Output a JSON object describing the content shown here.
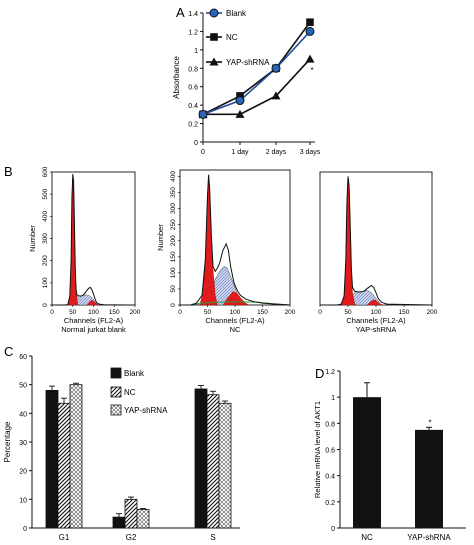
{
  "panels": {
    "a": "A",
    "b": "B",
    "c": "C",
    "d": "D"
  },
  "colors": {
    "blank_line": "#1f4e9a",
    "black": "#111111",
    "peak_red": "#e11b1b",
    "s_phase_fill": "#a9b8dd",
    "hist_line": "#111111",
    "fit_green": "#2e9a3a"
  },
  "chart_data": [
    {
      "id": "panel-a",
      "type": "line",
      "ylabel": "Absorbance",
      "ylim": [
        0,
        1.4
      ],
      "yticks": [
        "0",
        "0.2",
        "0.4",
        "0.6",
        "0.8",
        "1",
        "1.2",
        "1.4"
      ],
      "categories": [
        "0",
        "1 day",
        "2 days",
        "3 days"
      ],
      "series": [
        {
          "name": "Blank",
          "marker": "circle",
          "values": [
            0.3,
            0.45,
            0.8,
            1.2
          ]
        },
        {
          "name": "NC",
          "marker": "square",
          "values": [
            0.3,
            0.5,
            0.8,
            1.3
          ]
        },
        {
          "name": "YAP-shRNA",
          "marker": "triangle",
          "values": [
            0.3,
            0.3,
            0.5,
            0.9
          ]
        }
      ],
      "annotation": "*",
      "legend": "top-left"
    },
    {
      "id": "panel-b1",
      "type": "histogram",
      "xlabel": "Channels (FL2-A)",
      "ylabel": "Number",
      "caption": "Normal jurkat blank",
      "ylim": [
        0,
        600
      ],
      "yticks": [
        "0",
        "100",
        "200",
        "300",
        "400",
        "500",
        "600"
      ],
      "xticks": [
        "0",
        "50",
        "100",
        "150",
        "200"
      ],
      "xlim": [
        0,
        200
      ],
      "curve": [
        [
          0,
          0
        ],
        [
          30,
          0
        ],
        [
          38,
          2
        ],
        [
          43,
          40
        ],
        [
          46,
          200
        ],
        [
          48,
          480
        ],
        [
          50,
          590
        ],
        [
          52,
          560
        ],
        [
          54,
          380
        ],
        [
          56,
          170
        ],
        [
          58,
          70
        ],
        [
          60,
          45
        ],
        [
          64,
          42
        ],
        [
          70,
          40
        ],
        [
          76,
          46
        ],
        [
          82,
          60
        ],
        [
          88,
          75
        ],
        [
          92,
          80
        ],
        [
          96,
          70
        ],
        [
          100,
          50
        ],
        [
          104,
          25
        ],
        [
          108,
          10
        ],
        [
          114,
          4
        ],
        [
          125,
          1
        ],
        [
          200,
          0
        ]
      ],
      "g1": [
        [
          38,
          0
        ],
        [
          43,
          40
        ],
        [
          46,
          200
        ],
        [
          48,
          480
        ],
        [
          50,
          590
        ],
        [
          52,
          560
        ],
        [
          54,
          380
        ],
        [
          56,
          170
        ],
        [
          58,
          60
        ],
        [
          62,
          5
        ],
        [
          64,
          0
        ]
      ],
      "g2": [
        [
          84,
          0
        ],
        [
          90,
          12
        ],
        [
          96,
          22
        ],
        [
          100,
          18
        ],
        [
          106,
          6
        ],
        [
          112,
          0
        ]
      ],
      "s": [
        [
          52,
          0
        ],
        [
          56,
          30
        ],
        [
          62,
          40
        ],
        [
          72,
          42
        ],
        [
          82,
          46
        ],
        [
          92,
          40
        ],
        [
          102,
          20
        ],
        [
          110,
          0
        ]
      ]
    },
    {
      "id": "panel-b2",
      "type": "histogram",
      "xlabel": "Channels (FL2-A)",
      "ylabel": "Number",
      "caption": "NC",
      "ylim": [
        0,
        420
      ],
      "yticks": [
        "0",
        "50",
        "100",
        "150",
        "200",
        "250",
        "300",
        "350",
        "400"
      ],
      "xticks": [
        "0",
        "50",
        "100",
        "150",
        "200"
      ],
      "xlim": [
        0,
        200
      ],
      "curve": [
        [
          0,
          0
        ],
        [
          20,
          0
        ],
        [
          30,
          6
        ],
        [
          40,
          30
        ],
        [
          46,
          140
        ],
        [
          50,
          340
        ],
        [
          52,
          405
        ],
        [
          54,
          360
        ],
        [
          57,
          220
        ],
        [
          60,
          120
        ],
        [
          64,
          105
        ],
        [
          68,
          115
        ],
        [
          72,
          130
        ],
        [
          78,
          170
        ],
        [
          84,
          190
        ],
        [
          88,
          170
        ],
        [
          92,
          120
        ],
        [
          98,
          70
        ],
        [
          104,
          45
        ],
        [
          110,
          30
        ],
        [
          120,
          18
        ],
        [
          135,
          10
        ],
        [
          150,
          6
        ],
        [
          170,
          3
        ],
        [
          200,
          0
        ]
      ],
      "g1": [
        [
          36,
          0
        ],
        [
          42,
          40
        ],
        [
          46,
          140
        ],
        [
          50,
          340
        ],
        [
          52,
          405
        ],
        [
          54,
          360
        ],
        [
          57,
          220
        ],
        [
          60,
          110
        ],
        [
          64,
          30
        ],
        [
          68,
          0
        ]
      ],
      "g2": [
        [
          78,
          0
        ],
        [
          86,
          20
        ],
        [
          96,
          42
        ],
        [
          104,
          36
        ],
        [
          112,
          18
        ],
        [
          120,
          5
        ],
        [
          126,
          0
        ]
      ],
      "s": [
        [
          54,
          0
        ],
        [
          58,
          40
        ],
        [
          64,
          80
        ],
        [
          72,
          105
        ],
        [
          80,
          120
        ],
        [
          86,
          115
        ],
        [
          94,
          80
        ],
        [
          104,
          35
        ],
        [
          114,
          0
        ]
      ],
      "fit": [
        [
          20,
          2
        ],
        [
          60,
          8
        ],
        [
          100,
          10
        ],
        [
          140,
          9
        ],
        [
          170,
          4
        ],
        [
          195,
          1
        ]
      ]
    },
    {
      "id": "panel-b3",
      "type": "histogram",
      "xlabel": "Channels (FL2-A)",
      "ylabel": "",
      "caption": "YAP-shRNA",
      "ylim": [
        0,
        600
      ],
      "yticks": [],
      "xticks": [
        "0",
        "50",
        "100",
        "150",
        "200"
      ],
      "xlim": [
        0,
        200
      ],
      "curve": [
        [
          0,
          0
        ],
        [
          30,
          0
        ],
        [
          38,
          4
        ],
        [
          43,
          40
        ],
        [
          46,
          200
        ],
        [
          48,
          460
        ],
        [
          50,
          580
        ],
        [
          52,
          540
        ],
        [
          54,
          360
        ],
        [
          56,
          160
        ],
        [
          58,
          80
        ],
        [
          62,
          62
        ],
        [
          70,
          58
        ],
        [
          78,
          62
        ],
        [
          86,
          78
        ],
        [
          92,
          88
        ],
        [
          96,
          78
        ],
        [
          100,
          55
        ],
        [
          104,
          30
        ],
        [
          110,
          12
        ],
        [
          120,
          4
        ],
        [
          200,
          0
        ]
      ],
      "g1": [
        [
          38,
          0
        ],
        [
          43,
          40
        ],
        [
          46,
          200
        ],
        [
          48,
          460
        ],
        [
          50,
          580
        ],
        [
          52,
          540
        ],
        [
          54,
          360
        ],
        [
          56,
          160
        ],
        [
          58,
          55
        ],
        [
          62,
          5
        ],
        [
          64,
          0
        ]
      ],
      "g2": [
        [
          84,
          0
        ],
        [
          90,
          14
        ],
        [
          96,
          24
        ],
        [
          100,
          20
        ],
        [
          106,
          6
        ],
        [
          112,
          0
        ]
      ],
      "s": [
        [
          52,
          0
        ],
        [
          56,
          40
        ],
        [
          64,
          58
        ],
        [
          74,
          60
        ],
        [
          84,
          66
        ],
        [
          92,
          56
        ],
        [
          102,
          24
        ],
        [
          110,
          0
        ]
      ]
    },
    {
      "id": "panel-c",
      "type": "bar",
      "ylabel": "Percentage",
      "ylim": [
        0,
        60
      ],
      "yticks": [
        "0",
        "10",
        "20",
        "30",
        "40",
        "50",
        "60"
      ],
      "categories": [
        "G1",
        "G2",
        "S"
      ],
      "series": [
        {
          "name": "Blank",
          "pattern": "solid",
          "values": [
            48,
            3.8,
            48.5
          ],
          "errors": [
            1.5,
            1.2,
            1.2
          ]
        },
        {
          "name": "NC",
          "pattern": "hatch",
          "values": [
            43.5,
            10,
            46.5
          ],
          "errors": [
            1.8,
            0.8,
            1.2
          ]
        },
        {
          "name": "YAP-shRNA",
          "pattern": "cross",
          "values": [
            50,
            6.5,
            43.5
          ],
          "errors": [
            0.5,
            0.3,
            0.8
          ]
        }
      ],
      "legend": "top-left"
    },
    {
      "id": "panel-d",
      "type": "bar",
      "ylabel": "Relative mRNA level of AKT1",
      "ylim": [
        0,
        1.2
      ],
      "yticks": [
        "0",
        "0.2",
        "0.4",
        "0.6",
        "0.8",
        "1",
        "1.2"
      ],
      "categories": [
        "NC",
        "YAP-shRNA"
      ],
      "values": [
        1.0,
        0.75
      ],
      "errors": [
        0.11,
        0.02
      ],
      "annotation": "*"
    }
  ]
}
